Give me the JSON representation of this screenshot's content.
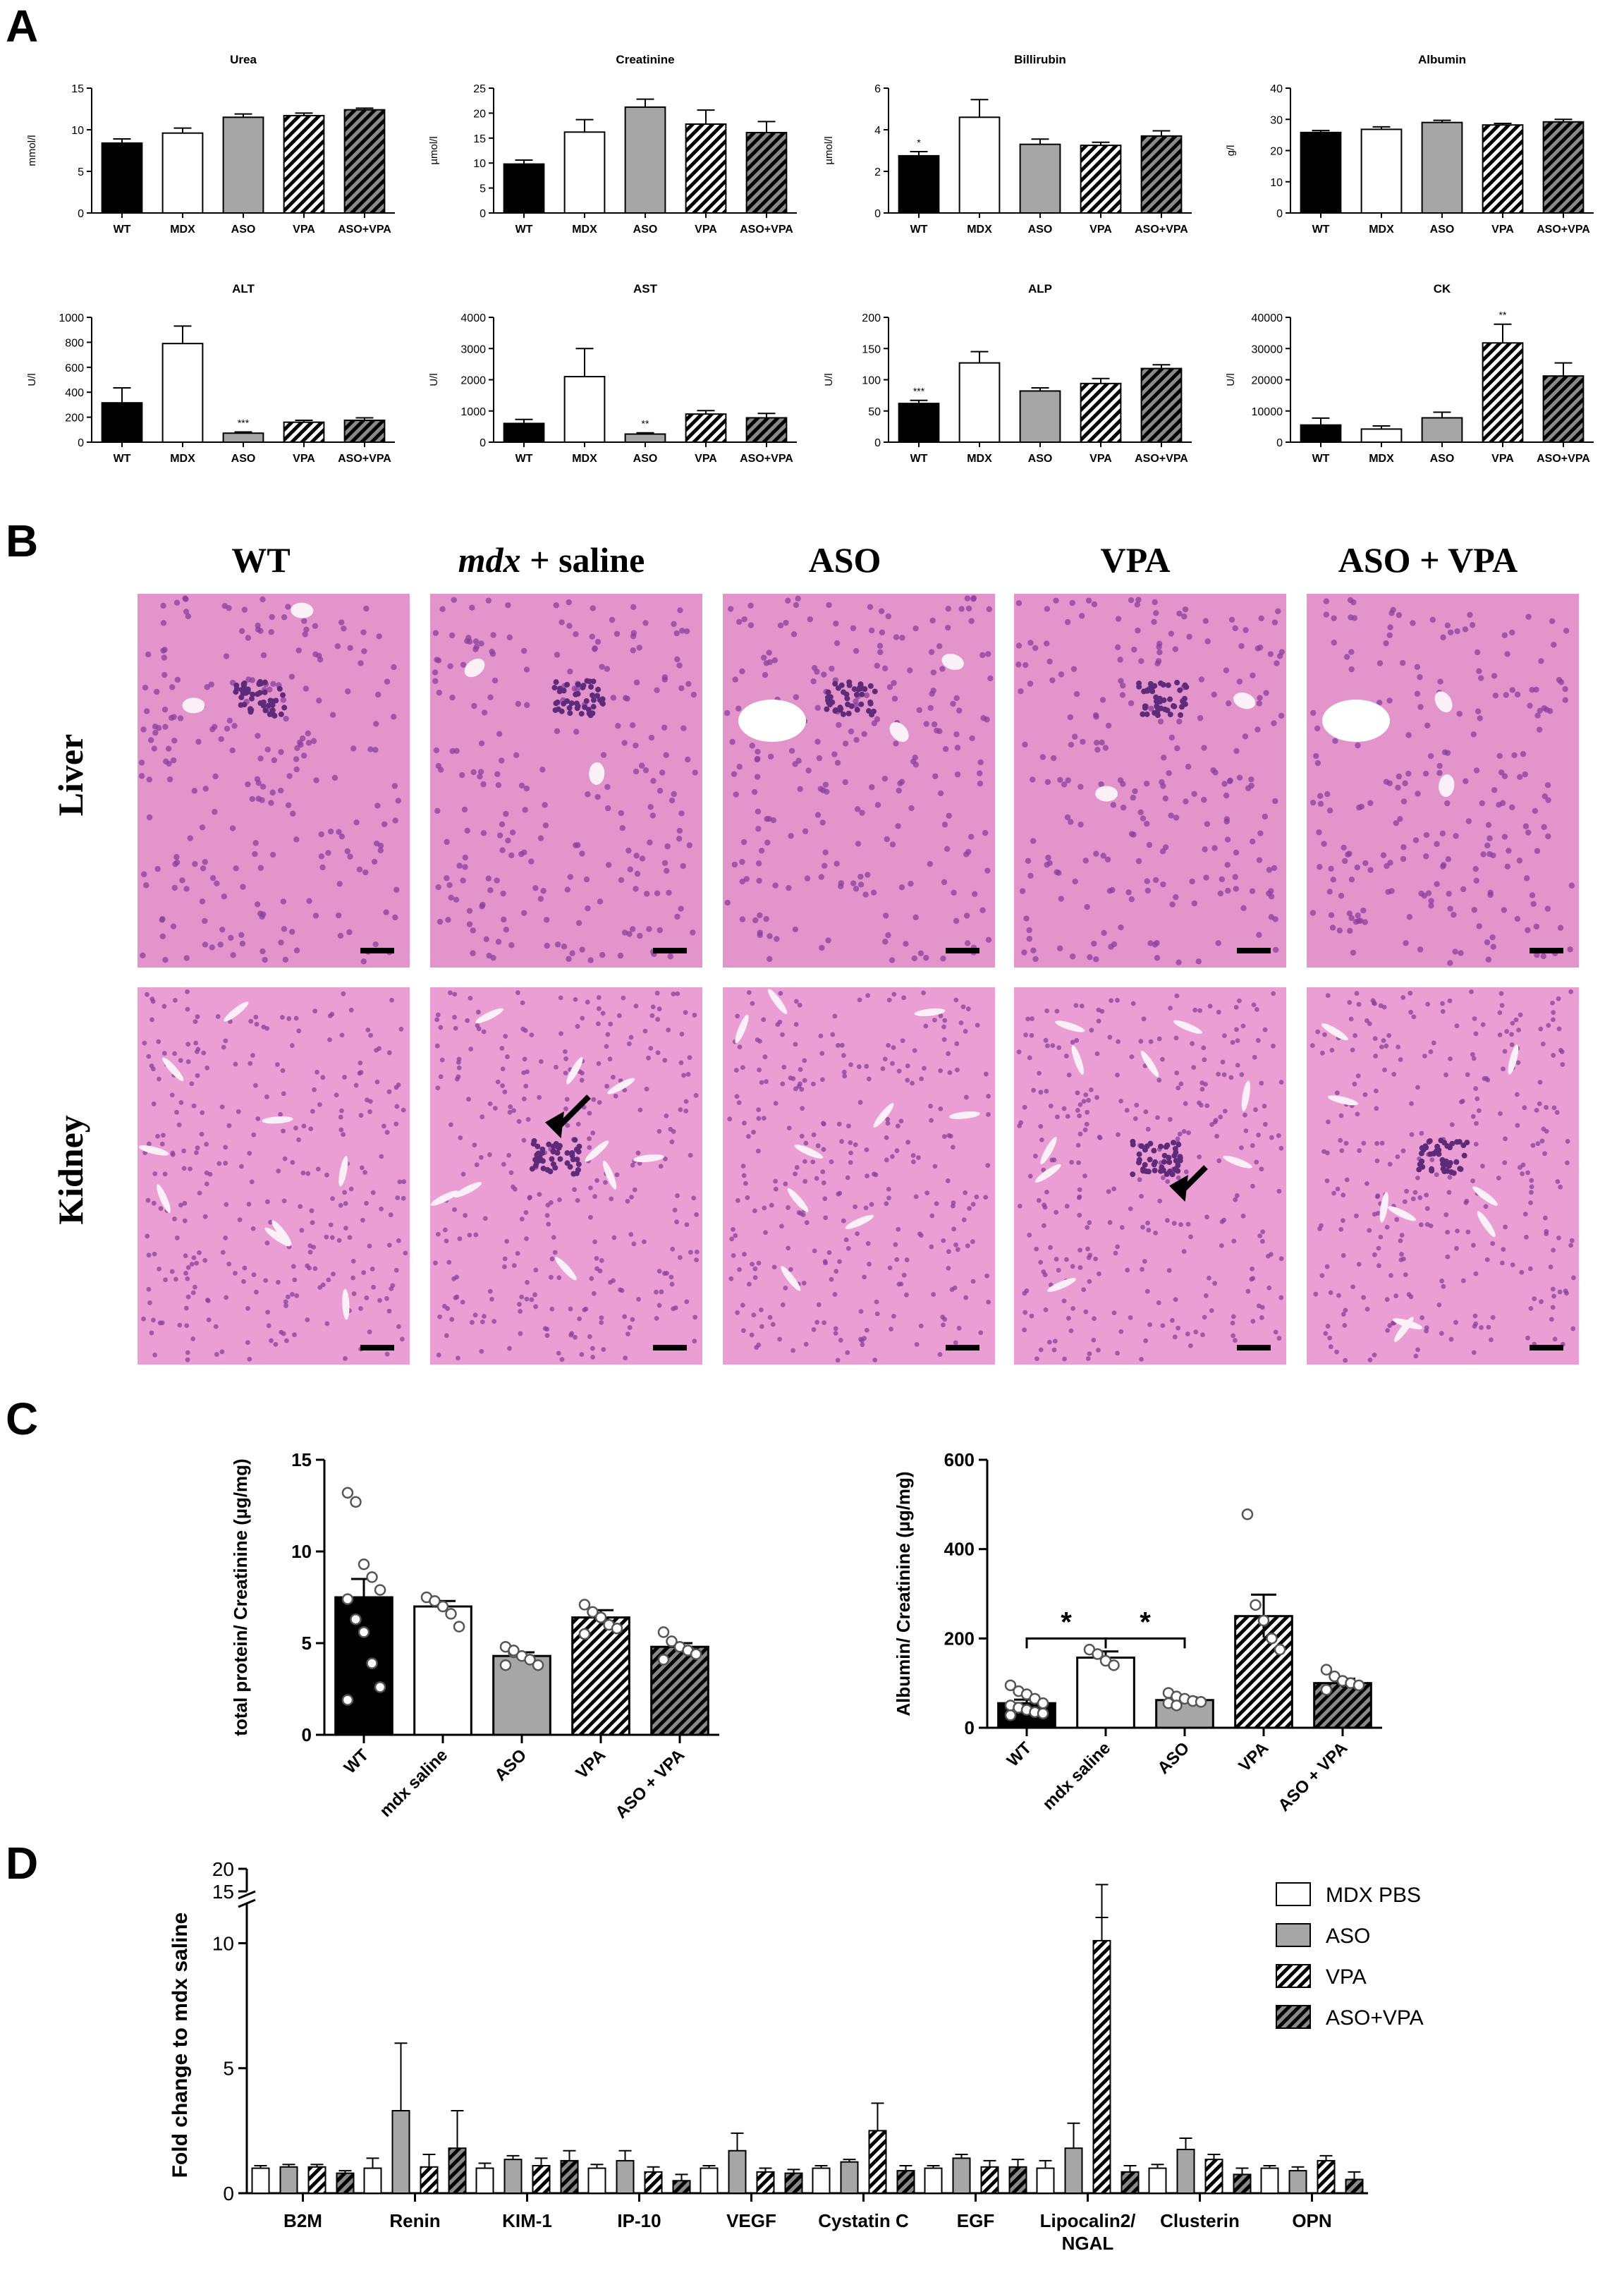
{
  "panels": {
    "a": "A",
    "b": "B",
    "c": "C",
    "d": "D"
  },
  "colors": {
    "black": "#000000",
    "white": "#ffffff",
    "grey": "#a6a6a6",
    "he_pink": "#e89bd0",
    "nuclei": "#7a3a9a"
  },
  "chart_data": [
    {
      "id": "urea",
      "type": "bar",
      "title": "Urea",
      "ylabel": "mmol/l",
      "ylim": [
        0,
        15
      ],
      "yticks": [
        0,
        5,
        10,
        15
      ],
      "categories": [
        "WT",
        "MDX",
        "ASO",
        "VPA",
        "ASO+VPA"
      ],
      "values": [
        8.4,
        9.6,
        11.5,
        11.7,
        12.4
      ],
      "errors": [
        0.5,
        0.6,
        0.4,
        0.3,
        0.2
      ],
      "sig": [
        "",
        "",
        "",
        "",
        ""
      ]
    },
    {
      "id": "creatinine",
      "type": "bar",
      "title": "Creatinine",
      "ylabel": "µmol/l",
      "ylim": [
        0,
        25
      ],
      "yticks": [
        0,
        5,
        10,
        15,
        20,
        25
      ],
      "categories": [
        "WT",
        "MDX",
        "ASO",
        "VPA",
        "ASO+VPA"
      ],
      "values": [
        9.8,
        16.2,
        21.2,
        17.8,
        16.1
      ],
      "errors": [
        0.8,
        2.5,
        1.6,
        2.8,
        2.2
      ],
      "sig": [
        "",
        "",
        "",
        "",
        ""
      ]
    },
    {
      "id": "bilirubin",
      "type": "bar",
      "title": "Billirubin",
      "ylabel": "µmol/l",
      "ylim": [
        0,
        6
      ],
      "yticks": [
        0,
        2,
        4,
        6
      ],
      "categories": [
        "WT",
        "MDX",
        "ASO",
        "VPA",
        "ASO+VPA"
      ],
      "values": [
        2.75,
        4.6,
        3.3,
        3.25,
        3.7
      ],
      "errors": [
        0.2,
        0.85,
        0.25,
        0.15,
        0.25
      ],
      "sig": [
        "*",
        "",
        "",
        "",
        ""
      ]
    },
    {
      "id": "albumin",
      "type": "bar",
      "title": "Albumin",
      "ylabel": "g/l",
      "ylim": [
        0,
        40
      ],
      "yticks": [
        0,
        10,
        20,
        30,
        40
      ],
      "categories": [
        "WT",
        "MDX",
        "ASO",
        "VPA",
        "ASO+VPA"
      ],
      "values": [
        25.8,
        26.8,
        29.0,
        28.2,
        29.2
      ],
      "errors": [
        0.6,
        0.8,
        0.7,
        0.5,
        0.8
      ],
      "sig": [
        "",
        "",
        "",
        "",
        ""
      ]
    },
    {
      "id": "alt",
      "type": "bar",
      "title": "ALT",
      "ylabel": "U/l",
      "ylim": [
        0,
        1000
      ],
      "yticks": [
        0,
        200,
        400,
        600,
        800,
        1000
      ],
      "categories": [
        "WT",
        "MDX",
        "ASO",
        "VPA",
        "ASO+VPA"
      ],
      "values": [
        315,
        790,
        72,
        160,
        175
      ],
      "errors": [
        120,
        140,
        10,
        15,
        20
      ],
      "sig": [
        "",
        "",
        "***",
        "",
        ""
      ]
    },
    {
      "id": "ast",
      "type": "bar",
      "title": "AST",
      "ylabel": "U/l",
      "ylim": [
        0,
        4000
      ],
      "yticks": [
        0,
        1000,
        2000,
        3000,
        4000
      ],
      "categories": [
        "WT",
        "MDX",
        "ASO",
        "VPA",
        "ASO+VPA"
      ],
      "values": [
        600,
        2100,
        260,
        900,
        780
      ],
      "errors": [
        130,
        900,
        40,
        110,
        140
      ],
      "sig": [
        "",
        "",
        "**",
        "",
        ""
      ]
    },
    {
      "id": "alp",
      "type": "bar",
      "title": "ALP",
      "ylabel": "U/l",
      "ylim": [
        0,
        200
      ],
      "yticks": [
        0,
        50,
        100,
        150,
        200
      ],
      "categories": [
        "WT",
        "MDX",
        "ASO",
        "VPA",
        "ASO+VPA"
      ],
      "values": [
        62,
        127,
        82,
        94,
        118
      ],
      "errors": [
        5,
        18,
        5,
        8,
        6
      ],
      "sig": [
        "***",
        "",
        "",
        "",
        ""
      ]
    },
    {
      "id": "ck",
      "type": "bar",
      "title": "CK",
      "ylabel": "U/l",
      "ylim": [
        0,
        40000
      ],
      "yticks": [
        0,
        10000,
        20000,
        30000,
        40000
      ],
      "categories": [
        "WT",
        "MDX",
        "ASO",
        "VPA",
        "ASO+VPA"
      ],
      "values": [
        5500,
        4200,
        7800,
        31800,
        21200
      ],
      "errors": [
        2200,
        1000,
        1800,
        6000,
        4200
      ],
      "sig": [
        "",
        "",
        "",
        "**",
        ""
      ]
    },
    {
      "id": "total_protein",
      "type": "bar",
      "ylabel": "total protein/ Creatinine (µg/mg)",
      "ylim": [
        0,
        15
      ],
      "yticks": [
        0,
        5,
        10,
        15
      ],
      "categories": [
        "WT",
        "mdx saline",
        "ASO",
        "VPA",
        "ASO + VPA"
      ],
      "values": [
        7.5,
        7.0,
        4.3,
        6.4,
        4.8
      ],
      "errors": [
        1.0,
        0.3,
        0.2,
        0.4,
        0.2
      ],
      "points": [
        [
          13.2,
          12.7,
          9.3,
          8.6,
          7.9,
          7.4,
          6.3,
          5.6,
          3.9,
          2.6,
          1.9
        ],
        [
          7.5,
          7.3,
          7.0,
          6.6,
          5.9
        ],
        [
          4.8,
          4.5,
          4.3,
          4.1,
          3.8,
          3.8,
          4.6
        ],
        [
          7.1,
          6.7,
          6.4,
          6.0,
          5.8,
          5.5
        ],
        [
          5.6,
          5.1,
          4.8,
          4.6,
          4.4,
          4.1
        ]
      ]
    },
    {
      "id": "albumin_ratio",
      "type": "bar",
      "ylabel": "Albumin/ Creatinine (µg/mg)",
      "ylim": [
        0,
        600
      ],
      "yticks": [
        0,
        200,
        400,
        600
      ],
      "categories": [
        "WT",
        "mdx saline",
        "ASO",
        "VPA",
        "ASO + VPA"
      ],
      "values": [
        55,
        157,
        62,
        250,
        100
      ],
      "errors": [
        8,
        14,
        6,
        48,
        10
      ],
      "points": [
        [
          95,
          82,
          75,
          65,
          55,
          50,
          45,
          40,
          35,
          32,
          28
        ],
        [
          175,
          165,
          150,
          140
        ],
        [
          78,
          70,
          65,
          60,
          58,
          55,
          50
        ],
        [
          478,
          275,
          240,
          200,
          175
        ],
        [
          130,
          115,
          105,
          100,
          95,
          85
        ]
      ],
      "significance": [
        "*",
        "*"
      ]
    },
    {
      "id": "fold_change",
      "type": "bar",
      "ylabel": "Fold change to mdx saline",
      "categories": [
        "B2M",
        "Renin",
        "KIM-1",
        "IP-10",
        "VEGF",
        "Cystatin C",
        "EGF",
        "Lipocalin2/ NGAL",
        "Clusterin",
        "OPN"
      ],
      "yticks": [
        0,
        5,
        10,
        15,
        20
      ],
      "series": [
        {
          "name": "MDX PBS",
          "values": [
            1.0,
            1.0,
            1.0,
            1.0,
            1.0,
            1.0,
            1.0,
            1.0,
            1.0,
            1.0
          ],
          "errors": [
            0.1,
            0.4,
            0.2,
            0.15,
            0.1,
            0.1,
            0.1,
            0.3,
            0.15,
            0.1
          ]
        },
        {
          "name": "ASO",
          "values": [
            1.05,
            3.3,
            1.35,
            1.3,
            1.7,
            1.25,
            1.4,
            1.8,
            1.75,
            0.9
          ],
          "errors": [
            0.1,
            2.7,
            0.15,
            0.4,
            0.7,
            0.1,
            0.15,
            1.0,
            0.45,
            0.15
          ]
        },
        {
          "name": "VPA",
          "values": [
            1.05,
            1.05,
            1.1,
            0.85,
            0.85,
            2.5,
            1.05,
            10.1,
            1.35,
            1.3
          ],
          "errors": [
            0.1,
            0.5,
            0.3,
            0.2,
            0.15,
            1.1,
            0.25,
            1.0,
            0.2,
            0.2
          ]
        },
        {
          "name": "ASO+VPA",
          "values": [
            0.8,
            1.8,
            1.3,
            0.5,
            0.8,
            0.9,
            1.05,
            0.85,
            0.75,
            0.55
          ],
          "errors": [
            0.1,
            1.5,
            0.4,
            0.25,
            0.15,
            0.2,
            0.3,
            0.25,
            0.25,
            0.3
          ]
        }
      ],
      "outlier_error_top": 16.5
    }
  ],
  "histology": {
    "columns": [
      "WT",
      "mdx",
      "+ saline",
      "ASO",
      "VPA",
      "ASO + VPA"
    ],
    "rows": [
      "Liver",
      "Kidney"
    ]
  }
}
